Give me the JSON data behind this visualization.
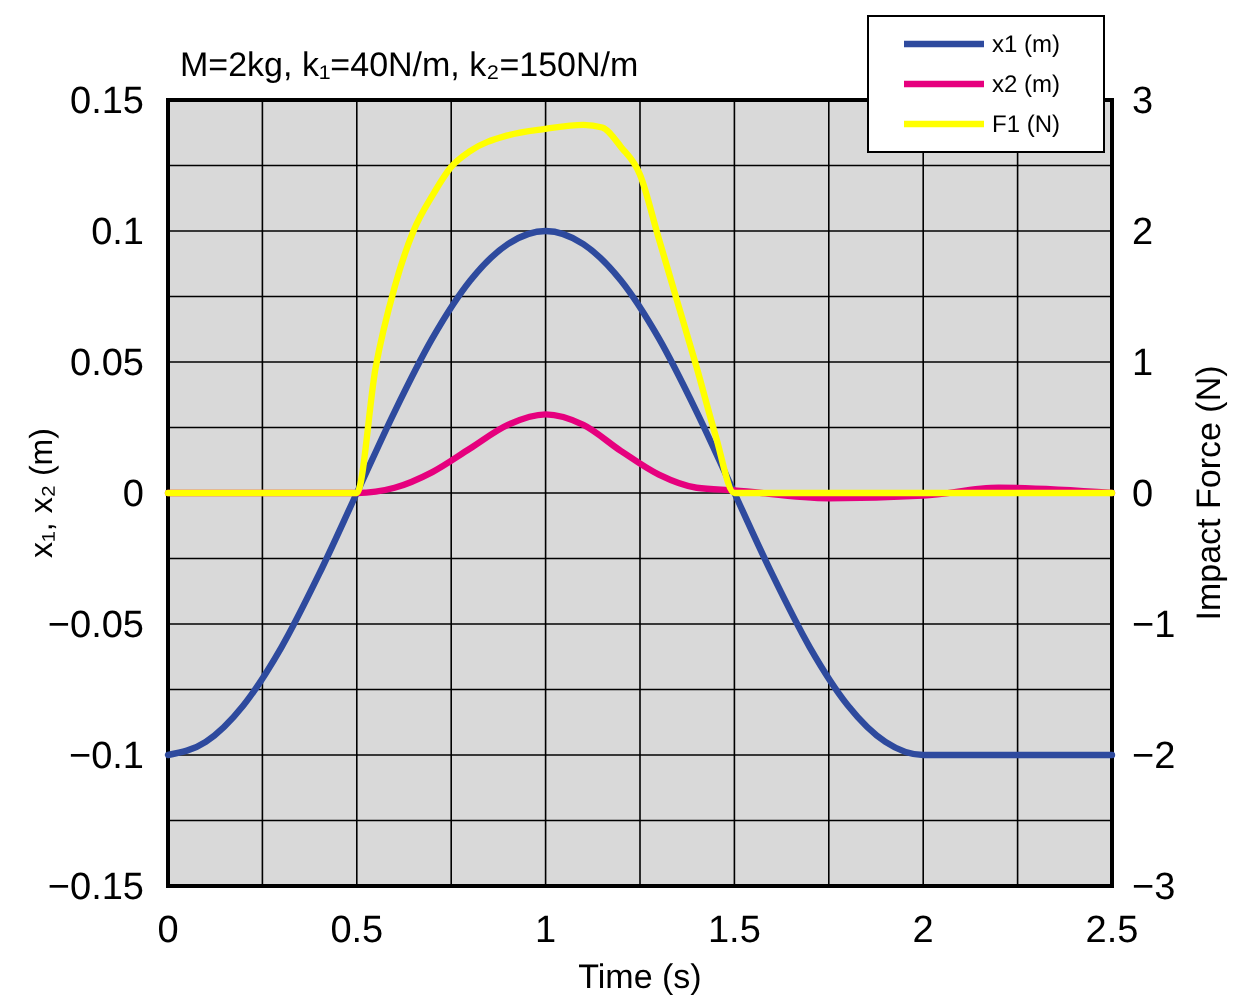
{
  "chart_data": {
    "type": "line",
    "title": "M=2kg, k₁=40N/m, k₂=150N/m",
    "xlabel": "Time (s)",
    "ylabel": "x₁, x₂ (m)",
    "y2label": "Impact Force (N)",
    "series": [
      {
        "name": "x1 (m)",
        "color": "#2e4a9e",
        "x": [
          0,
          0.1,
          0.2,
          0.3,
          0.4,
          0.5,
          0.6,
          0.7,
          0.8,
          0.9,
          1.0,
          1.1,
          1.2,
          1.3,
          1.4,
          1.5,
          1.6,
          1.7,
          1.8,
          1.9,
          2.0,
          2.5
        ],
        "values": [
          -0.1,
          -0.095,
          -0.081,
          -0.059,
          -0.031,
          0,
          0.031,
          0.059,
          0.081,
          0.095,
          0.1,
          0.095,
          0.081,
          0.059,
          0.031,
          0,
          -0.031,
          -0.059,
          -0.081,
          -0.095,
          -0.1,
          -0.1
        ]
      },
      {
        "name": "x2 (m)",
        "color": "#e6007e",
        "x": [
          0,
          0.5,
          0.6,
          0.7,
          0.8,
          0.9,
          1.0,
          1.1,
          1.2,
          1.3,
          1.4,
          1.5,
          1.75,
          2.0,
          2.2,
          2.5
        ],
        "values": [
          0,
          0,
          0.002,
          0.008,
          0.017,
          0.026,
          0.03,
          0.026,
          0.016,
          0.007,
          0.002,
          0.001,
          -0.002,
          -0.001,
          0.002,
          0
        ]
      },
      {
        "name": "F1 (N)",
        "color": "#ffff00",
        "axis": "y2",
        "x": [
          0,
          0.5,
          0.55,
          0.6,
          0.65,
          0.7,
          0.75,
          0.8,
          0.9,
          1.0,
          1.1,
          1.15,
          1.2,
          1.25,
          1.3,
          1.35,
          1.4,
          1.45,
          1.5,
          2.5
        ],
        "values": [
          0,
          0,
          0.96,
          1.57,
          2.0,
          2.27,
          2.49,
          2.61,
          2.73,
          2.78,
          2.81,
          2.79,
          2.64,
          2.43,
          1.94,
          1.45,
          0.96,
          0.44,
          0,
          0
        ]
      }
    ],
    "xlim": [
      0,
      2.5
    ],
    "xticks": [
      0,
      {
        "value": 0.25,
        "label": null
      },
      0.5,
      {
        "value": 0.75,
        "label": null
      },
      1,
      {
        "value": 1.25,
        "label": null
      },
      1.5,
      {
        "value": 1.75,
        "label": null
      },
      2,
      {
        "value": 2.25,
        "label": null
      },
      2.5
    ],
    "ylim": [
      -0.15,
      0.15
    ],
    "yticks": [
      -0.15,
      {
        "value": -0.125,
        "label": null
      },
      -0.1,
      {
        "value": -0.075,
        "label": null
      },
      -0.05,
      {
        "value": -0.025,
        "label": null
      },
      0,
      {
        "value": 0.025,
        "label": null
      },
      0.05,
      {
        "value": 0.075,
        "label": null
      },
      0.1,
      {
        "value": 0.125,
        "label": null
      },
      0.15
    ],
    "y2lim": [
      -3,
      3
    ],
    "y2ticks": [
      -3,
      -2,
      -1,
      0,
      1,
      2,
      3
    ],
    "grid": true,
    "legend": "top right",
    "marker": "none",
    "line_style": "solid"
  }
}
